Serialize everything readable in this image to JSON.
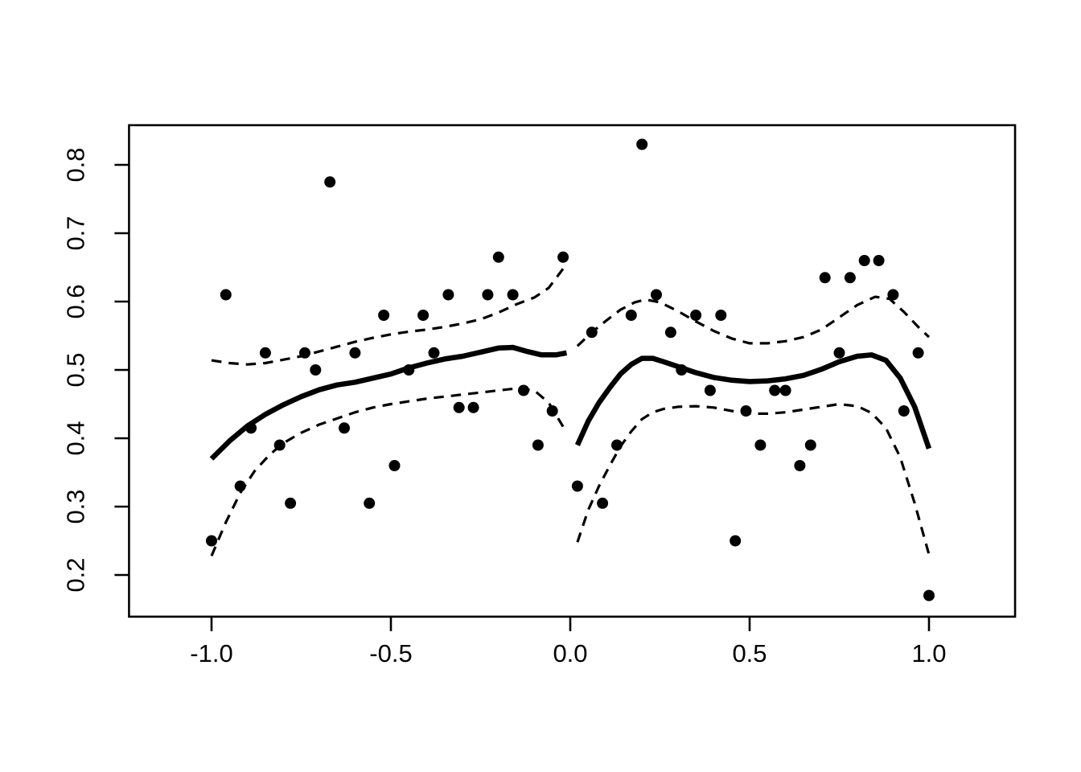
{
  "figure": {
    "background": "#ffffff",
    "foreground": "#000000",
    "title": ""
  },
  "chart_data": {
    "type": "scatter",
    "title": "",
    "xlabel": "",
    "ylabel": "",
    "xlim": [
      -1.23,
      1.24
    ],
    "ylim": [
      0.139,
      0.858
    ],
    "grid": false,
    "legend": "none",
    "x_ticks": [
      {
        "v": -1.0,
        "label": "-1.0"
      },
      {
        "v": -0.5,
        "label": "-0.5"
      },
      {
        "v": 0.0,
        "label": "0.0"
      },
      {
        "v": 0.5,
        "label": "0.5"
      },
      {
        "v": 1.0,
        "label": "1.0"
      }
    ],
    "y_ticks": [
      {
        "v": 0.2,
        "label": "0.2"
      },
      {
        "v": 0.3,
        "label": "0.3"
      },
      {
        "v": 0.4,
        "label": "0.4"
      },
      {
        "v": 0.5,
        "label": "0.5"
      },
      {
        "v": 0.6,
        "label": "0.6"
      },
      {
        "v": 0.7,
        "label": "0.7"
      },
      {
        "v": 0.8,
        "label": "0.8"
      }
    ],
    "points": [
      [
        -1.0,
        0.25
      ],
      [
        -0.96,
        0.61
      ],
      [
        -0.92,
        0.33
      ],
      [
        -0.89,
        0.415
      ],
      [
        -0.85,
        0.525
      ],
      [
        -0.81,
        0.39
      ],
      [
        -0.78,
        0.305
      ],
      [
        -0.74,
        0.525
      ],
      [
        -0.71,
        0.5
      ],
      [
        -0.67,
        0.775
      ],
      [
        -0.63,
        0.415
      ],
      [
        -0.6,
        0.525
      ],
      [
        -0.56,
        0.305
      ],
      [
        -0.52,
        0.58
      ],
      [
        -0.49,
        0.36
      ],
      [
        -0.45,
        0.5
      ],
      [
        -0.41,
        0.58
      ],
      [
        -0.38,
        0.525
      ],
      [
        -0.34,
        0.61
      ],
      [
        -0.31,
        0.445
      ],
      [
        -0.27,
        0.445
      ],
      [
        -0.23,
        0.61
      ],
      [
        -0.2,
        0.665
      ],
      [
        -0.16,
        0.61
      ],
      [
        -0.13,
        0.47
      ],
      [
        -0.09,
        0.39
      ],
      [
        -0.05,
        0.44
      ],
      [
        -0.02,
        0.665
      ],
      [
        0.02,
        0.33
      ],
      [
        0.06,
        0.555
      ],
      [
        0.09,
        0.305
      ],
      [
        0.13,
        0.39
      ],
      [
        0.17,
        0.58
      ],
      [
        0.2,
        0.83
      ],
      [
        0.24,
        0.61
      ],
      [
        0.28,
        0.555
      ],
      [
        0.31,
        0.5
      ],
      [
        0.35,
        0.58
      ],
      [
        0.39,
        0.47
      ],
      [
        0.42,
        0.58
      ],
      [
        0.46,
        0.25
      ],
      [
        0.49,
        0.44
      ],
      [
        0.53,
        0.39
      ],
      [
        0.57,
        0.47
      ],
      [
        0.6,
        0.47
      ],
      [
        0.64,
        0.36
      ],
      [
        0.67,
        0.39
      ],
      [
        0.71,
        0.635
      ],
      [
        0.75,
        0.525
      ],
      [
        0.78,
        0.635
      ],
      [
        0.82,
        0.66
      ],
      [
        0.86,
        0.66
      ],
      [
        0.9,
        0.61
      ],
      [
        0.93,
        0.44
      ],
      [
        0.97,
        0.525
      ],
      [
        1.0,
        0.17
      ]
    ],
    "curves": [
      {
        "id": "smooth-left",
        "style": "solid",
        "points": [
          [
            -1.0,
            0.37
          ],
          [
            -0.95,
            0.396
          ],
          [
            -0.9,
            0.418
          ],
          [
            -0.85,
            0.435
          ],
          [
            -0.8,
            0.449
          ],
          [
            -0.75,
            0.461
          ],
          [
            -0.7,
            0.471
          ],
          [
            -0.65,
            0.478
          ],
          [
            -0.6,
            0.482
          ],
          [
            -0.55,
            0.488
          ],
          [
            -0.5,
            0.494
          ],
          [
            -0.45,
            0.503
          ],
          [
            -0.4,
            0.51
          ],
          [
            -0.35,
            0.516
          ],
          [
            -0.3,
            0.52
          ],
          [
            -0.25,
            0.526
          ],
          [
            -0.2,
            0.532
          ],
          [
            -0.16,
            0.533
          ],
          [
            -0.12,
            0.527
          ],
          [
            -0.08,
            0.522
          ],
          [
            -0.04,
            0.522
          ],
          [
            -0.01,
            0.525
          ]
        ]
      },
      {
        "id": "smooth-right",
        "style": "solid",
        "points": [
          [
            0.02,
            0.39
          ],
          [
            0.05,
            0.425
          ],
          [
            0.08,
            0.452
          ],
          [
            0.11,
            0.474
          ],
          [
            0.14,
            0.494
          ],
          [
            0.17,
            0.508
          ],
          [
            0.2,
            0.517
          ],
          [
            0.23,
            0.517
          ],
          [
            0.26,
            0.512
          ],
          [
            0.3,
            0.505
          ],
          [
            0.35,
            0.496
          ],
          [
            0.4,
            0.489
          ],
          [
            0.45,
            0.485
          ],
          [
            0.5,
            0.483
          ],
          [
            0.55,
            0.484
          ],
          [
            0.6,
            0.487
          ],
          [
            0.65,
            0.492
          ],
          [
            0.7,
            0.501
          ],
          [
            0.75,
            0.512
          ],
          [
            0.8,
            0.52
          ],
          [
            0.84,
            0.522
          ],
          [
            0.88,
            0.514
          ],
          [
            0.92,
            0.488
          ],
          [
            0.96,
            0.446
          ],
          [
            1.0,
            0.385
          ]
        ]
      },
      {
        "id": "band-upper-left",
        "style": "dashed",
        "points": [
          [
            -1.0,
            0.514
          ],
          [
            -0.95,
            0.51
          ],
          [
            -0.9,
            0.508
          ],
          [
            -0.85,
            0.51
          ],
          [
            -0.8,
            0.515
          ],
          [
            -0.75,
            0.52
          ],
          [
            -0.7,
            0.527
          ],
          [
            -0.65,
            0.534
          ],
          [
            -0.6,
            0.541
          ],
          [
            -0.55,
            0.547
          ],
          [
            -0.5,
            0.552
          ],
          [
            -0.45,
            0.556
          ],
          [
            -0.4,
            0.559
          ],
          [
            -0.35,
            0.563
          ],
          [
            -0.3,
            0.568
          ],
          [
            -0.25,
            0.574
          ],
          [
            -0.2,
            0.584
          ],
          [
            -0.15,
            0.596
          ],
          [
            -0.1,
            0.606
          ],
          [
            -0.06,
            0.62
          ],
          [
            -0.02,
            0.648
          ]
        ]
      },
      {
        "id": "band-lower-left",
        "style": "dashed",
        "points": [
          [
            -1.0,
            0.228
          ],
          [
            -0.96,
            0.277
          ],
          [
            -0.92,
            0.32
          ],
          [
            -0.88,
            0.352
          ],
          [
            -0.84,
            0.375
          ],
          [
            -0.8,
            0.393
          ],
          [
            -0.75,
            0.408
          ],
          [
            -0.7,
            0.42
          ],
          [
            -0.65,
            0.429
          ],
          [
            -0.6,
            0.438
          ],
          [
            -0.55,
            0.445
          ],
          [
            -0.5,
            0.45
          ],
          [
            -0.45,
            0.454
          ],
          [
            -0.4,
            0.458
          ],
          [
            -0.35,
            0.461
          ],
          [
            -0.3,
            0.464
          ],
          [
            -0.25,
            0.467
          ],
          [
            -0.2,
            0.47
          ],
          [
            -0.15,
            0.473
          ],
          [
            -0.1,
            0.47
          ],
          [
            -0.06,
            0.452
          ],
          [
            -0.02,
            0.417
          ]
        ]
      },
      {
        "id": "band-upper-right",
        "style": "dashed",
        "points": [
          [
            0.02,
            0.535
          ],
          [
            0.06,
            0.555
          ],
          [
            0.1,
            0.572
          ],
          [
            0.14,
            0.588
          ],
          [
            0.18,
            0.599
          ],
          [
            0.21,
            0.603
          ],
          [
            0.25,
            0.599
          ],
          [
            0.3,
            0.586
          ],
          [
            0.35,
            0.571
          ],
          [
            0.4,
            0.557
          ],
          [
            0.45,
            0.546
          ],
          [
            0.5,
            0.539
          ],
          [
            0.55,
            0.539
          ],
          [
            0.6,
            0.542
          ],
          [
            0.65,
            0.548
          ],
          [
            0.7,
            0.559
          ],
          [
            0.75,
            0.577
          ],
          [
            0.8,
            0.595
          ],
          [
            0.85,
            0.607
          ],
          [
            0.89,
            0.604
          ],
          [
            0.93,
            0.585
          ],
          [
            0.97,
            0.563
          ],
          [
            1.0,
            0.548
          ]
        ]
      },
      {
        "id": "band-lower-right",
        "style": "dashed",
        "points": [
          [
            0.02,
            0.248
          ],
          [
            0.05,
            0.295
          ],
          [
            0.08,
            0.33
          ],
          [
            0.11,
            0.36
          ],
          [
            0.14,
            0.388
          ],
          [
            0.17,
            0.41
          ],
          [
            0.2,
            0.428
          ],
          [
            0.23,
            0.438
          ],
          [
            0.26,
            0.443
          ],
          [
            0.3,
            0.446
          ],
          [
            0.35,
            0.447
          ],
          [
            0.4,
            0.445
          ],
          [
            0.45,
            0.44
          ],
          [
            0.5,
            0.436
          ],
          [
            0.55,
            0.436
          ],
          [
            0.6,
            0.438
          ],
          [
            0.65,
            0.442
          ],
          [
            0.7,
            0.446
          ],
          [
            0.75,
            0.45
          ],
          [
            0.8,
            0.447
          ],
          [
            0.84,
            0.437
          ],
          [
            0.88,
            0.415
          ],
          [
            0.92,
            0.372
          ],
          [
            0.96,
            0.305
          ],
          [
            1.0,
            0.23
          ]
        ]
      }
    ]
  }
}
